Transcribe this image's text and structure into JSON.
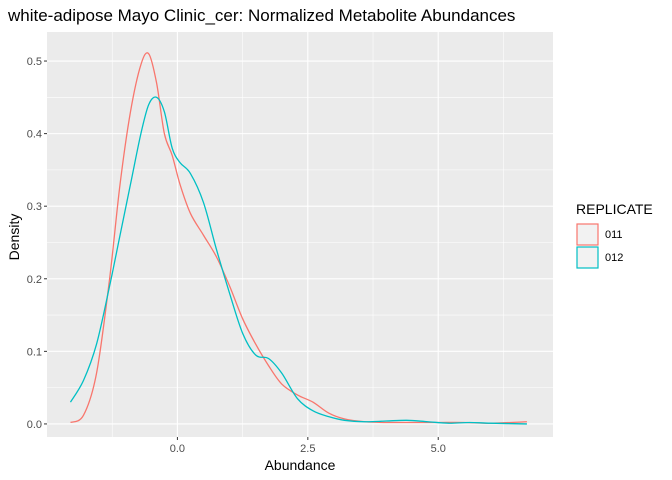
{
  "chart_data": {
    "type": "line",
    "title": "white-adipose Mayo Clinic_cer: Normalized Metabolite Abundances",
    "xlabel": "Abundance",
    "ylabel": "Density",
    "xlim": [
      -2.5,
      7.2
    ],
    "ylim": [
      -0.018,
      0.54
    ],
    "x_ticks": [
      0.0,
      2.5,
      5.0
    ],
    "x_tick_labels": [
      "0.0",
      "2.5",
      "5.0"
    ],
    "y_ticks": [
      0.0,
      0.1,
      0.2,
      0.3,
      0.4,
      0.5
    ],
    "y_tick_labels": [
      "0.0",
      "0.1",
      "0.2",
      "0.3",
      "0.4",
      "0.5"
    ],
    "grid": true,
    "legend": {
      "title": "REPLICATE",
      "position": "right"
    },
    "series": [
      {
        "name": "011",
        "color": "#F8766D",
        "x": [
          -2.05,
          -1.8,
          -1.55,
          -1.3,
          -1.1,
          -0.9,
          -0.7,
          -0.55,
          -0.4,
          -0.25,
          -0.1,
          0.05,
          0.25,
          0.5,
          0.75,
          1.0,
          1.25,
          1.5,
          1.75,
          2.0,
          2.3,
          2.6,
          2.9,
          3.2,
          3.6,
          4.0,
          4.5,
          5.0,
          5.5,
          6.0,
          6.7
        ],
        "y": [
          0.002,
          0.012,
          0.07,
          0.2,
          0.33,
          0.43,
          0.495,
          0.51,
          0.47,
          0.4,
          0.37,
          0.33,
          0.29,
          0.26,
          0.23,
          0.19,
          0.145,
          0.11,
          0.08,
          0.055,
          0.04,
          0.03,
          0.015,
          0.007,
          0.003,
          0.002,
          0.002,
          0.002,
          0.002,
          0.001,
          0.003
        ]
      },
      {
        "name": "012",
        "color": "#00BFC4",
        "x": [
          -2.05,
          -1.8,
          -1.55,
          -1.3,
          -1.1,
          -0.9,
          -0.7,
          -0.55,
          -0.4,
          -0.25,
          -0.1,
          0.05,
          0.25,
          0.5,
          0.75,
          1.0,
          1.25,
          1.5,
          1.75,
          2.0,
          2.3,
          2.6,
          2.9,
          3.2,
          3.6,
          4.0,
          4.4,
          4.8,
          5.2,
          5.6,
          6.0,
          6.7
        ],
        "y": [
          0.03,
          0.06,
          0.11,
          0.19,
          0.26,
          0.33,
          0.4,
          0.44,
          0.45,
          0.43,
          0.38,
          0.36,
          0.345,
          0.305,
          0.24,
          0.18,
          0.125,
          0.095,
          0.09,
          0.07,
          0.035,
          0.018,
          0.01,
          0.005,
          0.003,
          0.004,
          0.005,
          0.003,
          0.001,
          0.002,
          0.001,
          0.0
        ]
      }
    ]
  }
}
